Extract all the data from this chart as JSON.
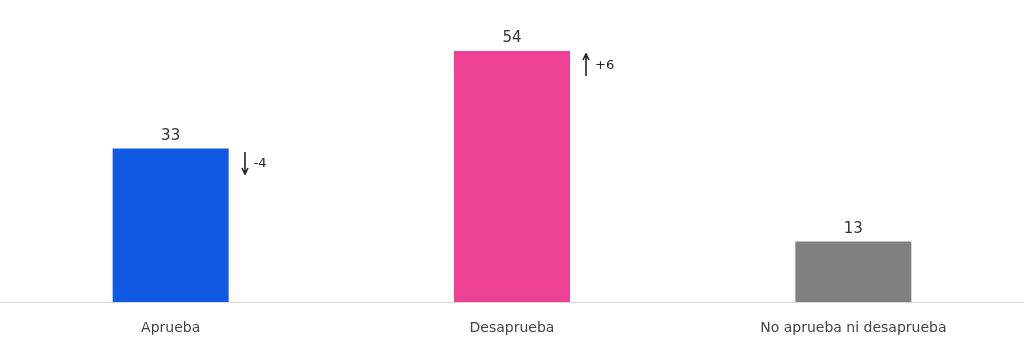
{
  "chart_data": {
    "type": "bar",
    "categories": [
      "Aprueba",
      "Desaprueba",
      "No aprueba ni desaprueba"
    ],
    "values": [
      33,
      54,
      13
    ],
    "colors": [
      "#1059e3",
      "#ec4195",
      "#808080"
    ],
    "data_labels": true,
    "annotations": [
      "-4",
      "+6"
    ]
  }
}
